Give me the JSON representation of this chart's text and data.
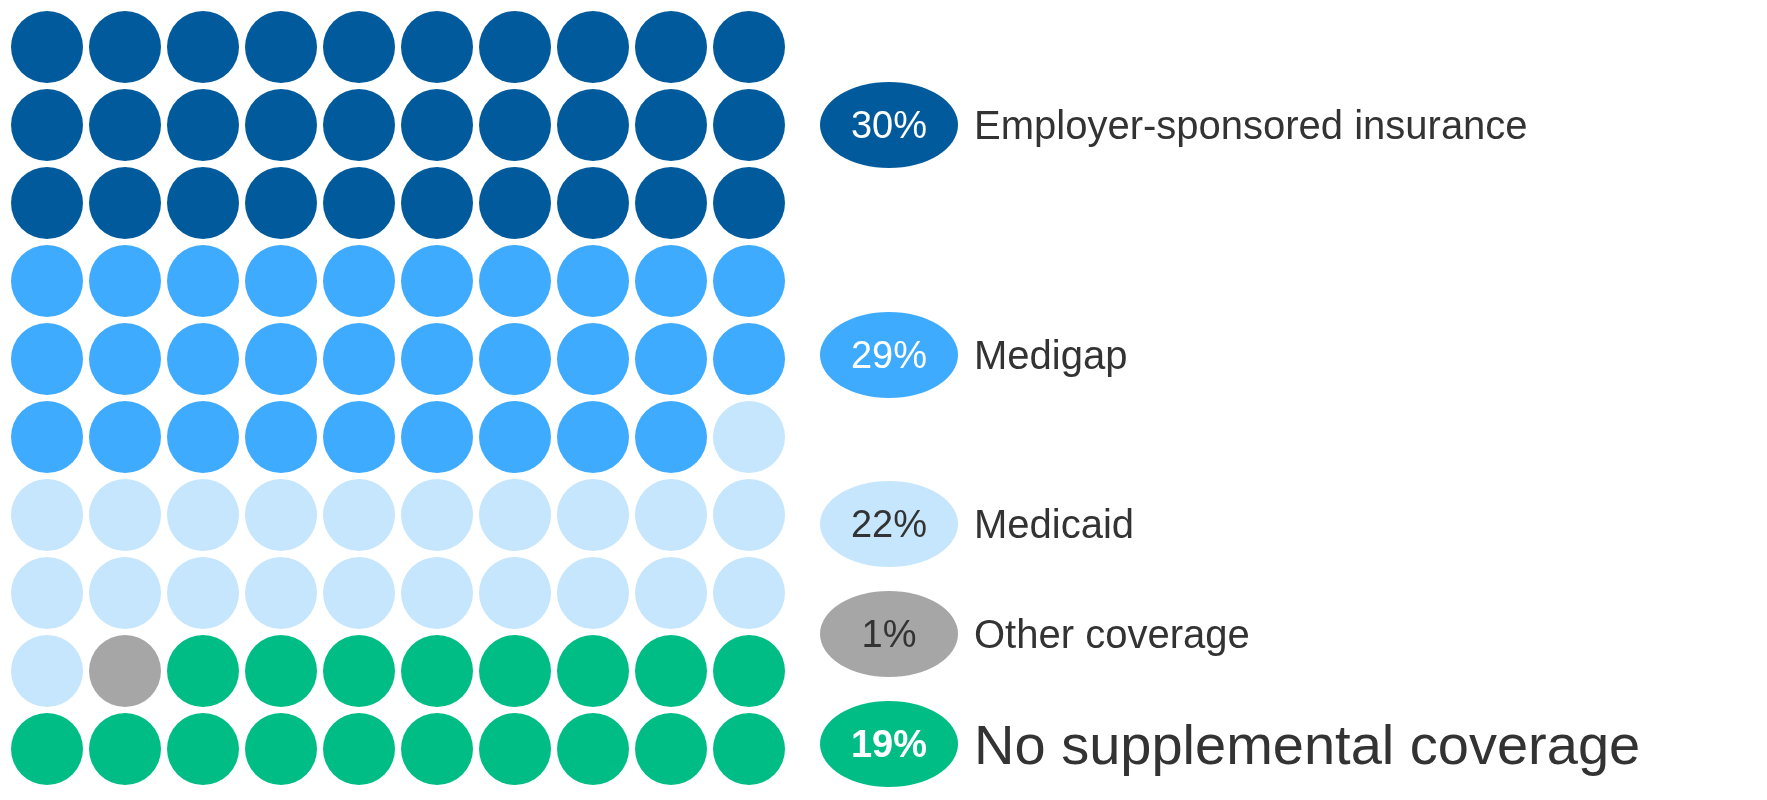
{
  "chart_data": {
    "type": "other",
    "categories": [
      "Employer-sponsored insurance",
      "Medigap",
      "Medicaid",
      "Other coverage",
      "No supplemental coverage"
    ],
    "values": [
      30,
      29,
      22,
      1,
      19
    ],
    "value_labels": [
      "30%",
      "29%",
      "22%",
      "1%",
      "19%"
    ],
    "colors": [
      "#005a9c",
      "#3fabff",
      "#c5e6fd",
      "#a6a6a6",
      "#00bd86"
    ]
  }
}
